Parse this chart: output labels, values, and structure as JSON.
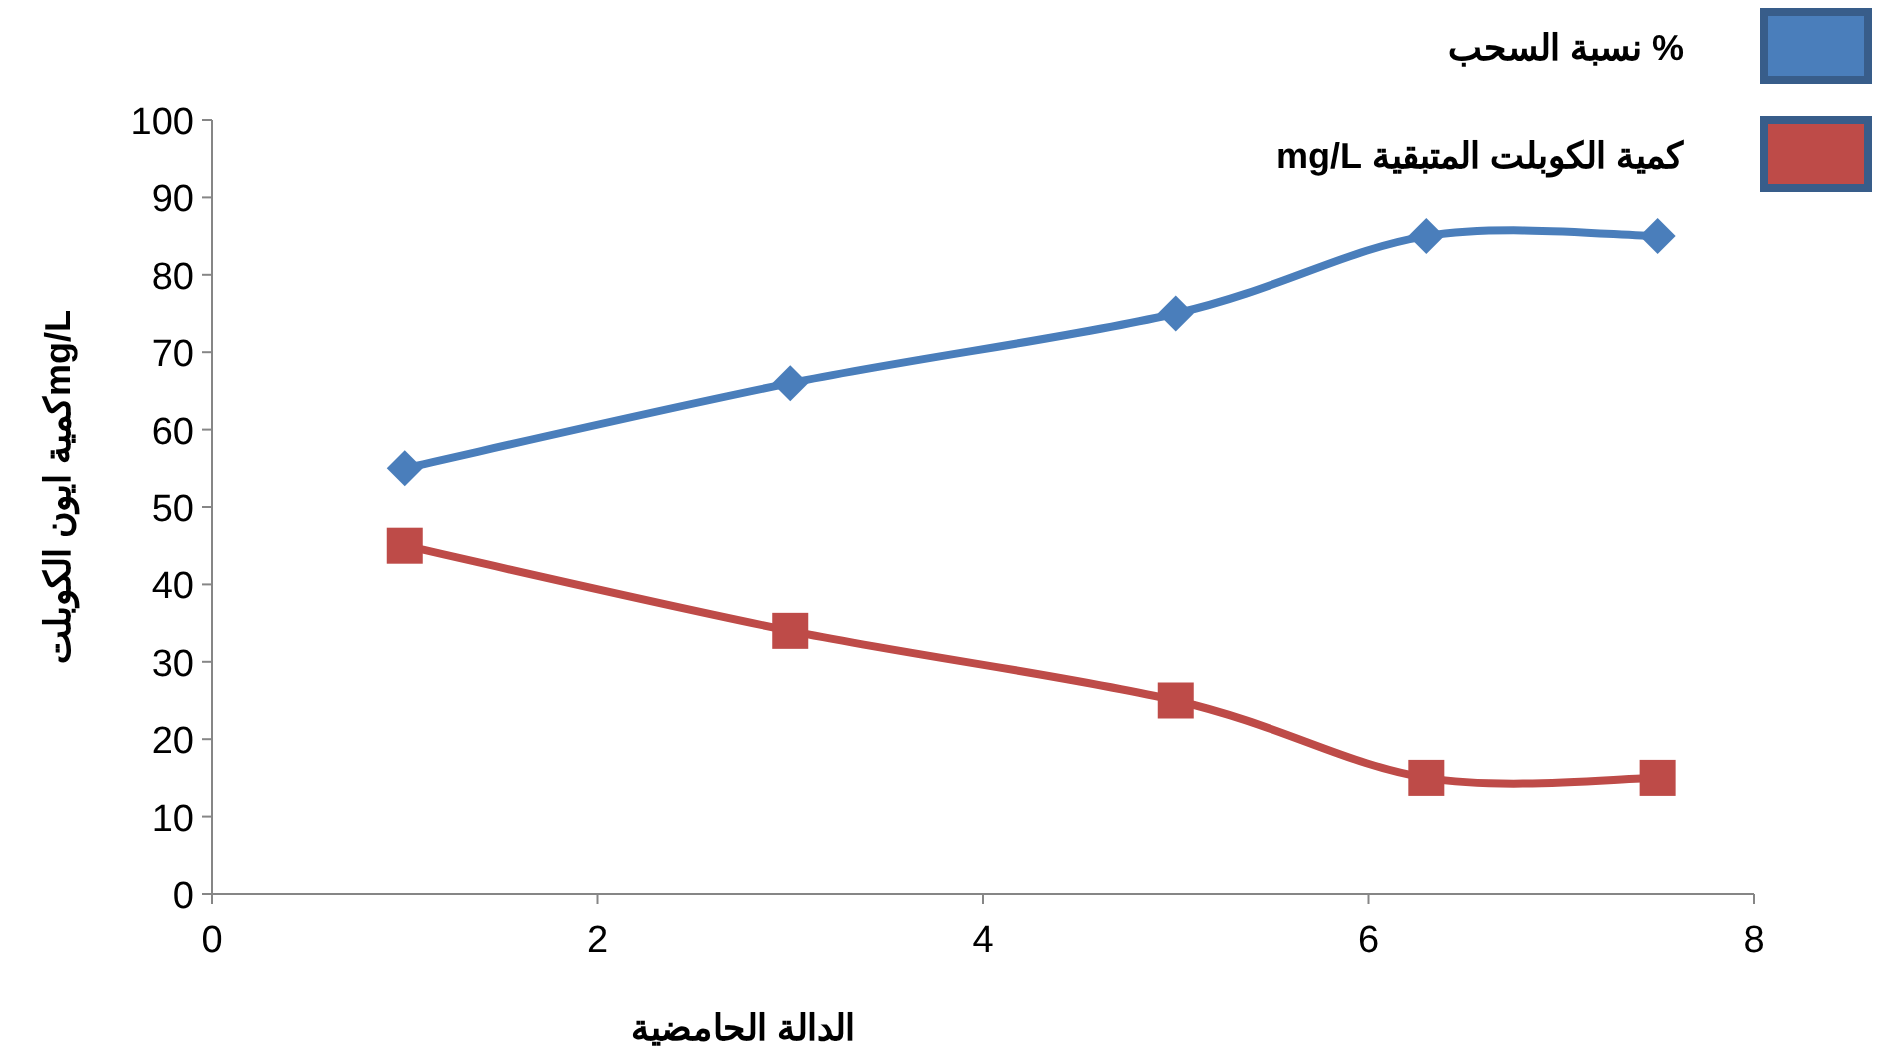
{
  "chart_data": {
    "type": "line",
    "xlabel": "الدالة الحامضية",
    "ylabel": "كمية ايون الكوبلتmg/L",
    "x": [
      1,
      3,
      5,
      6.3,
      7.5
    ],
    "series": [
      {
        "name": "% نسبة السحب",
        "color": "#4a7ebb",
        "values": [
          55,
          66,
          75,
          85,
          85
        ],
        "marker": "diamond"
      },
      {
        "name": "كمية الكوبلت المتبقية mg/L",
        "color": "#be4b48",
        "values": [
          45,
          34,
          25,
          15,
          15
        ],
        "marker": "square"
      }
    ],
    "xlim": [
      0,
      8
    ],
    "xticks": [
      0,
      2,
      4,
      6,
      8
    ],
    "ylim": [
      0,
      100
    ],
    "yticks": [
      0,
      10,
      20,
      30,
      40,
      50,
      60,
      70,
      80,
      90,
      100
    ],
    "grid": false,
    "legend": "top right",
    "line_style": "solid"
  }
}
